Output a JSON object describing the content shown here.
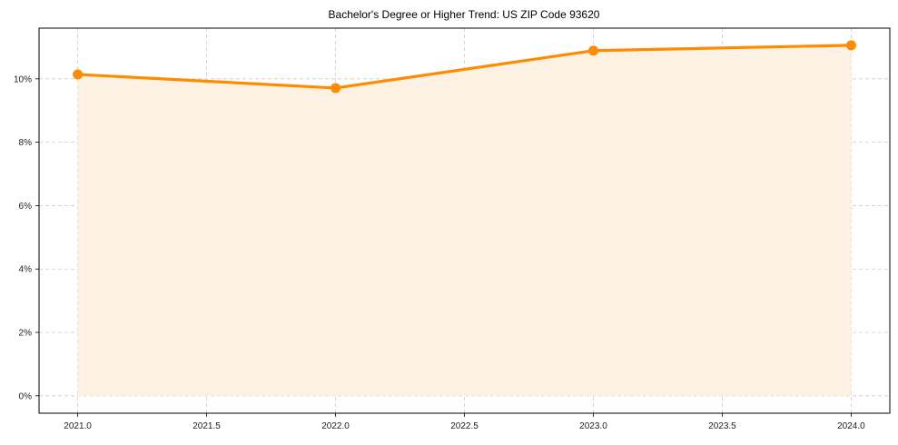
{
  "chart_data": {
    "type": "line",
    "title": "Bachelor's Degree or Higher Trend: US ZIP Code 93620",
    "xlabel": "",
    "ylabel": "",
    "x": [
      2021,
      2022,
      2023,
      2024
    ],
    "series": [
      {
        "name": "Bachelor's Degree or Higher",
        "values": [
          10.14,
          9.71,
          10.89,
          11.06
        ],
        "color": "#ff8c00",
        "fill": "#fdf1e3"
      }
    ],
    "x_ticks": [
      "2021.0",
      "2021.5",
      "2022.0",
      "2022.5",
      "2023.0",
      "2023.5",
      "2024.0"
    ],
    "x_tick_values": [
      2021.0,
      2021.5,
      2022.0,
      2022.5,
      2023.0,
      2023.5,
      2024.0
    ],
    "y_ticks": [
      "0%",
      "2%",
      "4%",
      "6%",
      "8%",
      "10%"
    ],
    "y_tick_values": [
      0,
      2,
      4,
      6,
      8,
      10
    ],
    "xlim": [
      2020.85,
      2024.15
    ],
    "ylim": [
      -0.55,
      11.6
    ],
    "grid": true,
    "legend": false,
    "area_fill": true
  }
}
